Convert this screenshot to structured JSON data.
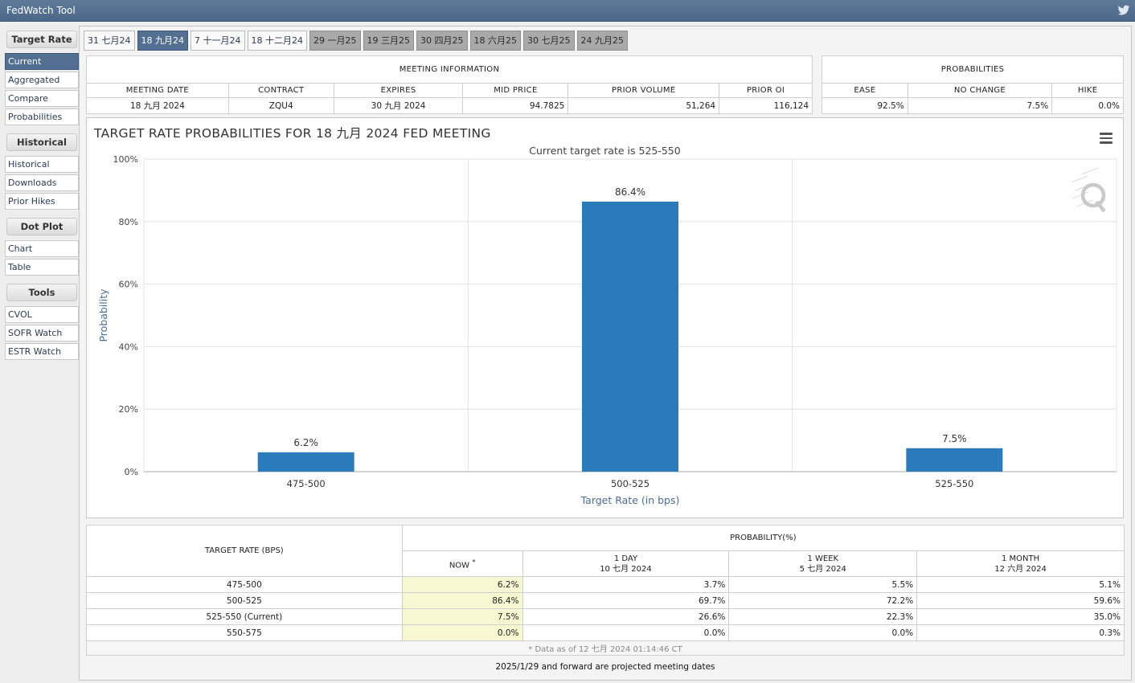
{
  "app": {
    "title": "FedWatch Tool"
  },
  "sidebar": {
    "groups": [
      {
        "header": "Target Rate",
        "items": [
          "Current",
          "Aggregated",
          "Compare",
          "Probabilities"
        ]
      },
      {
        "header": "Historical",
        "items": [
          "Historical",
          "Downloads",
          "Prior Hikes"
        ]
      },
      {
        "header": "Dot Plot",
        "items": [
          "Chart",
          "Table"
        ]
      },
      {
        "header": "Tools",
        "items": [
          "CVOL",
          "SOFR Watch",
          "ESTR Watch"
        ]
      }
    ],
    "active": "Current"
  },
  "tabs": [
    {
      "label": "31 七月24",
      "state": "normal"
    },
    {
      "label": "18 九月24",
      "state": "active"
    },
    {
      "label": "7 十一月24",
      "state": "normal"
    },
    {
      "label": "18 十二月24",
      "state": "normal"
    },
    {
      "label": "29 一月25",
      "state": "projected"
    },
    {
      "label": "19 三月25",
      "state": "projected"
    },
    {
      "label": "30 四月25",
      "state": "projected"
    },
    {
      "label": "18 六月25",
      "state": "projected"
    },
    {
      "label": "30 七月25",
      "state": "projected"
    },
    {
      "label": "24 九月25",
      "state": "projected"
    }
  ],
  "meeting_info": {
    "caption": "MEETING INFORMATION",
    "headers": [
      "MEETING DATE",
      "CONTRACT",
      "EXPIRES",
      "MID PRICE",
      "PRIOR VOLUME",
      "PRIOR OI"
    ],
    "values": [
      "18 九月 2024",
      "ZQU4",
      "30 九月 2024",
      "94.7825",
      "51,264",
      "116,124"
    ]
  },
  "probabilities": {
    "caption": "PROBABILITIES",
    "headers": [
      "EASE",
      "NO CHANGE",
      "HIKE"
    ],
    "values": [
      "92.5%",
      "7.5%",
      "0.0%"
    ]
  },
  "chart": {
    "title": "TARGET RATE PROBABILITIES FOR 18 九月 2024 FED MEETING",
    "subtitle": "Current target rate is 525-550",
    "menu_icon": "hamburger-menu-icon",
    "watermark_icon": "q-logo-icon",
    "bar_color": "#2b7bba"
  },
  "chart_data": {
    "type": "bar",
    "title": "TARGET RATE PROBABILITIES FOR 18 九月 2024 FED MEETING",
    "subtitle": "Current target rate is 525-550",
    "categories": [
      "475-500",
      "500-525",
      "525-550"
    ],
    "values": [
      6.2,
      86.4,
      7.5
    ],
    "data_labels": [
      "6.2%",
      "86.4%",
      "7.5%"
    ],
    "xlabel": "Target Rate (in bps)",
    "ylabel": "Probability",
    "ylim": [
      0,
      100
    ],
    "yticks": [
      0,
      20,
      40,
      60,
      80,
      100
    ],
    "ytick_labels": [
      "0%",
      "20%",
      "40%",
      "60%",
      "80%",
      "100%"
    ],
    "grid": true,
    "legend": "none"
  },
  "history": {
    "col_target": "TARGET RATE (BPS)",
    "col_prob": "PROBABILITY(%)",
    "sub_now": "NOW",
    "sub_now_mark": "*",
    "sub_day": "1 DAY",
    "sub_day_date": "10 七月 2024",
    "sub_week": "1 WEEK",
    "sub_week_date": "5 七月 2024",
    "sub_month": "1 MONTH",
    "sub_month_date": "12 六月 2024",
    "rows": [
      {
        "rate": "475-500",
        "now": "6.2%",
        "day": "3.7%",
        "week": "5.5%",
        "month": "5.1%"
      },
      {
        "rate": "500-525",
        "now": "86.4%",
        "day": "69.7%",
        "week": "72.2%",
        "month": "59.6%"
      },
      {
        "rate": "525-550 (Current)",
        "now": "7.5%",
        "day": "26.6%",
        "week": "22.3%",
        "month": "35.0%"
      },
      {
        "rate": "550-575",
        "now": "0.0%",
        "day": "0.0%",
        "week": "0.0%",
        "month": "0.3%"
      }
    ],
    "note": "* Data as of 12 七月 2024 01:14:46 CT"
  },
  "footer": "2025/1/29 and forward are projected meeting dates"
}
